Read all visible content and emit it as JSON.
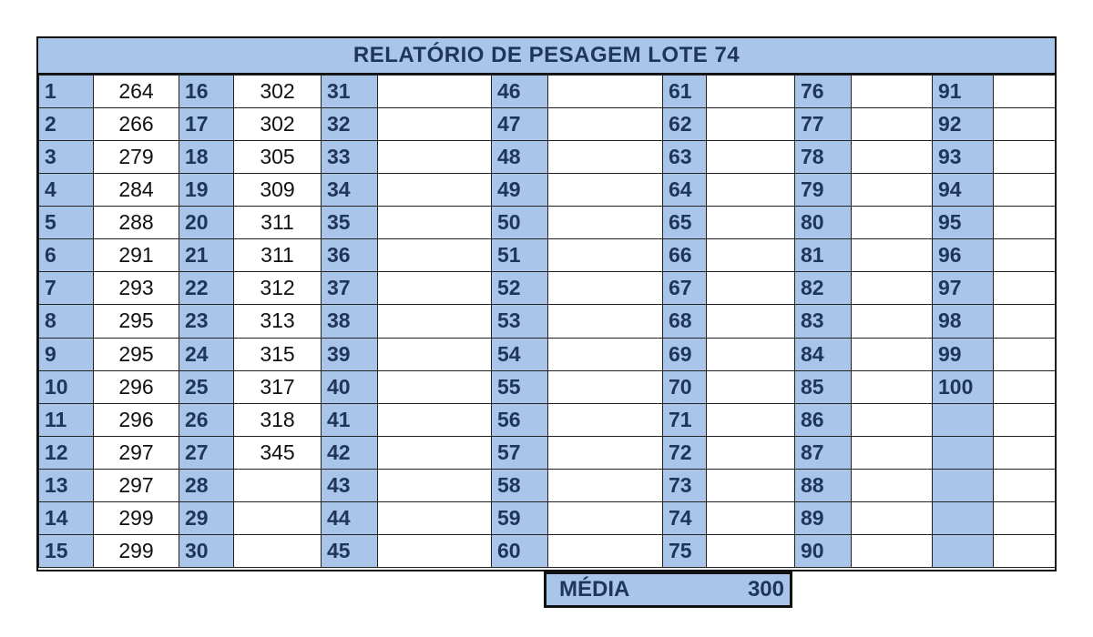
{
  "title": "RELATÓRIO DE PESAGEM LOTE 74",
  "numbers": [
    [
      "1",
      "2",
      "3",
      "4",
      "5",
      "6",
      "7",
      "8",
      "9",
      "10",
      "11",
      "12",
      "13",
      "14",
      "15"
    ],
    [
      "16",
      "17",
      "18",
      "19",
      "20",
      "21",
      "22",
      "23",
      "24",
      "25",
      "26",
      "27",
      "28",
      "29",
      "30"
    ],
    [
      "31",
      "32",
      "33",
      "34",
      "35",
      "36",
      "37",
      "38",
      "39",
      "40",
      "41",
      "42",
      "43",
      "44",
      "45"
    ],
    [
      "46",
      "47",
      "48",
      "49",
      "50",
      "51",
      "52",
      "53",
      "54",
      "55",
      "56",
      "57",
      "58",
      "59",
      "60"
    ],
    [
      "61",
      "62",
      "63",
      "64",
      "65",
      "66",
      "67",
      "68",
      "69",
      "70",
      "71",
      "72",
      "73",
      "74",
      "75"
    ],
    [
      "76",
      "77",
      "78",
      "79",
      "80",
      "81",
      "82",
      "83",
      "84",
      "85",
      "86",
      "87",
      "88",
      "89",
      "90"
    ],
    [
      "91",
      "92",
      "93",
      "94",
      "95",
      "96",
      "97",
      "98",
      "99",
      "100",
      "",
      "",
      "",
      "",
      ""
    ]
  ],
  "weights": [
    [
      "264",
      "266",
      "279",
      "284",
      "288",
      "291",
      "293",
      "295",
      "295",
      "296",
      "296",
      "297",
      "297",
      "299",
      "299"
    ],
    [
      "302",
      "302",
      "305",
      "309",
      "311",
      "311",
      "312",
      "313",
      "315",
      "317",
      "318",
      "345",
      "",
      "",
      ""
    ],
    [
      "",
      "",
      "",
      "",
      "",
      "",
      "",
      "",
      "",
      "",
      "",
      "",
      "",
      "",
      ""
    ],
    [
      "",
      "",
      "",
      "",
      "",
      "",
      "",
      "",
      "",
      "",
      "",
      "",
      "",
      "",
      ""
    ],
    [
      "",
      "",
      "",
      "",
      "",
      "",
      "",
      "",
      "",
      "",
      "",
      "",
      "",
      "",
      ""
    ],
    [
      "",
      "",
      "",
      "",
      "",
      "",
      "",
      "",
      "",
      "",
      "",
      "",
      "",
      "",
      ""
    ],
    [
      "",
      "",
      "",
      "",
      "",
      "",
      "",
      "",
      "",
      "",
      "",
      "",
      "",
      "",
      ""
    ]
  ],
  "media": {
    "label": "MÉDIA",
    "value": "300"
  }
}
